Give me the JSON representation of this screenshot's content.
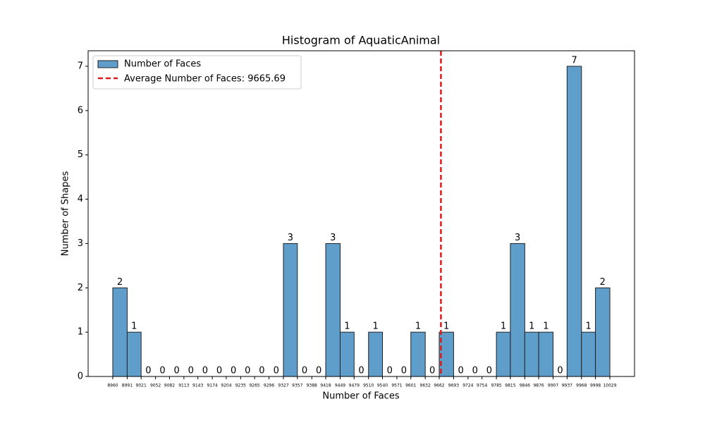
{
  "chart_data": {
    "type": "histogram",
    "title": "Histogram of AquaticAnimal",
    "x_label": "Number of Faces",
    "y_label": "Number of Shapes",
    "bins": [
      8960,
      8991,
      9021,
      9052,
      9082,
      9113,
      9143,
      9174,
      9204,
      9235,
      9265,
      9296,
      9327,
      9357,
      9388,
      9418,
      9449,
      9479,
      9510,
      9540,
      9571,
      9601,
      9632,
      9662,
      9693,
      9724,
      9754,
      9785,
      9815,
      9846,
      9876,
      9907,
      9937,
      9968,
      9998,
      10029
    ],
    "series": [
      {
        "name": "Number of Faces",
        "color": "#5f9ecb",
        "values": [
          2,
          1,
          0,
          0,
          0,
          0,
          0,
          0,
          0,
          0,
          0,
          0,
          3,
          0,
          0,
          3,
          1,
          0,
          1,
          0,
          0,
          1,
          0,
          1,
          0,
          0,
          0,
          1,
          3,
          1,
          1,
          0,
          7,
          1,
          2
        ]
      }
    ],
    "mean_line": {
      "label": "Average Number of Faces: 9665.69",
      "value": 9665.69,
      "color": "#e31a1c"
    },
    "xlim": [
      8907,
      10082
    ],
    "ylim": [
      0,
      7.35
    ],
    "yticks": [
      0,
      1,
      2,
      3,
      4,
      5,
      6,
      7
    ],
    "legend": "upper left"
  }
}
